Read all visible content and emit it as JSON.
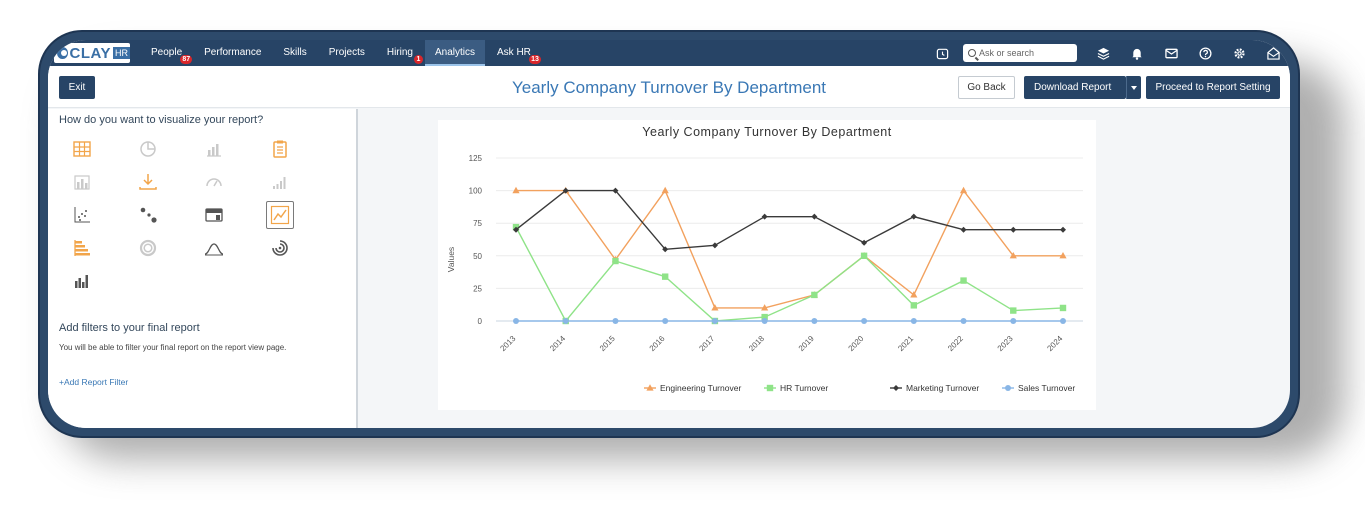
{
  "app": {
    "logo_text": "CLAY",
    "logo_sub": "HR"
  },
  "nav": {
    "items": [
      {
        "label": "People",
        "badge": "87"
      },
      {
        "label": "Performance",
        "badge": ""
      },
      {
        "label": "Skills",
        "badge": ""
      },
      {
        "label": "Projects",
        "badge": ""
      },
      {
        "label": "Hiring",
        "badge": "1"
      },
      {
        "label": "Analytics",
        "badge": ""
      },
      {
        "label": "Ask HR",
        "badge": "13"
      }
    ],
    "active": "Analytics",
    "search_placeholder": "Ask or search",
    "icons": [
      "clock-icon",
      "search-icon",
      "layers-icon",
      "bell-icon",
      "mail-icon",
      "help-icon",
      "gear-icon",
      "inbox-icon"
    ]
  },
  "toolbar": {
    "exit_label": "Exit",
    "title": "Yearly Company Turnover By Department",
    "go_back_label": "Go Back",
    "download_label": "Download Report",
    "proceed_label": "Proceed to Report Setting"
  },
  "left_panel": {
    "viz_title": "How do you want to visualize your report?",
    "viz_options": [
      {
        "icon": "table-icon",
        "enabled": true,
        "selected": false
      },
      {
        "icon": "pie-chart-icon",
        "enabled": false,
        "selected": false
      },
      {
        "icon": "bar-chart-icon",
        "enabled": false,
        "selected": false
      },
      {
        "icon": "clipboard-icon",
        "enabled": true,
        "selected": false
      },
      {
        "icon": "stacked-bar-icon",
        "enabled": false,
        "selected": false
      },
      {
        "icon": "download-icon",
        "enabled": true,
        "selected": false
      },
      {
        "icon": "gauge-icon",
        "enabled": false,
        "selected": false
      },
      {
        "icon": "ascending-bar-icon",
        "enabled": false,
        "selected": false
      },
      {
        "icon": "scatter-icon",
        "enabled": true,
        "selected": false
      },
      {
        "icon": "bubble-icon",
        "enabled": true,
        "selected": false
      },
      {
        "icon": "card-icon",
        "enabled": true,
        "selected": false
      },
      {
        "icon": "line-chart-icon",
        "enabled": true,
        "selected": true
      },
      {
        "icon": "horizontal-bar-icon",
        "enabled": true,
        "selected": false
      },
      {
        "icon": "donut-icon",
        "enabled": false,
        "selected": false
      },
      {
        "icon": "bell-curve-icon",
        "enabled": true,
        "selected": false
      },
      {
        "icon": "radial-icon",
        "enabled": true,
        "selected": false
      },
      {
        "icon": "grouped-bar-icon",
        "enabled": true,
        "selected": false
      }
    ],
    "filters_title": "Add filters to your final report",
    "filters_desc": "You will be able to filter your final report on the report view page.",
    "add_filter_label": "+Add Report Filter"
  },
  "chart_data": {
    "type": "line",
    "title": "Yearly Company Turnover By Department",
    "xlabel": "",
    "ylabel": "Values",
    "ylim": [
      0,
      125
    ],
    "yticks": [
      0,
      25,
      50,
      75,
      100,
      125
    ],
    "grid": true,
    "legend_position": "bottom",
    "x": [
      "2013",
      "2014",
      "2015",
      "2016",
      "2017",
      "2018",
      "2019",
      "2020",
      "2021",
      "2022",
      "2023",
      "2024"
    ],
    "series": [
      {
        "name": "Engineering Turnover",
        "color": "#f2a15e",
        "marker": "triangle",
        "values": [
          100,
          100,
          47,
          100,
          10,
          10,
          20,
          50,
          20,
          100,
          50,
          50
        ]
      },
      {
        "name": "HR Turnover",
        "color": "#8fe388",
        "marker": "square",
        "values": [
          72,
          0,
          46,
          34,
          0,
          3,
          20,
          50,
          12,
          31,
          8,
          10
        ]
      },
      {
        "name": "Marketing Turnover",
        "color": "#3a3a3a",
        "marker": "diamond",
        "values": [
          70,
          100,
          100,
          55,
          58,
          80,
          80,
          60,
          80,
          70,
          70,
          70
        ]
      },
      {
        "name": "Sales Turnover",
        "color": "#89b6e6",
        "marker": "circle",
        "values": [
          0,
          0,
          0,
          0,
          0,
          0,
          0,
          0,
          0,
          0,
          0,
          0
        ]
      }
    ]
  }
}
